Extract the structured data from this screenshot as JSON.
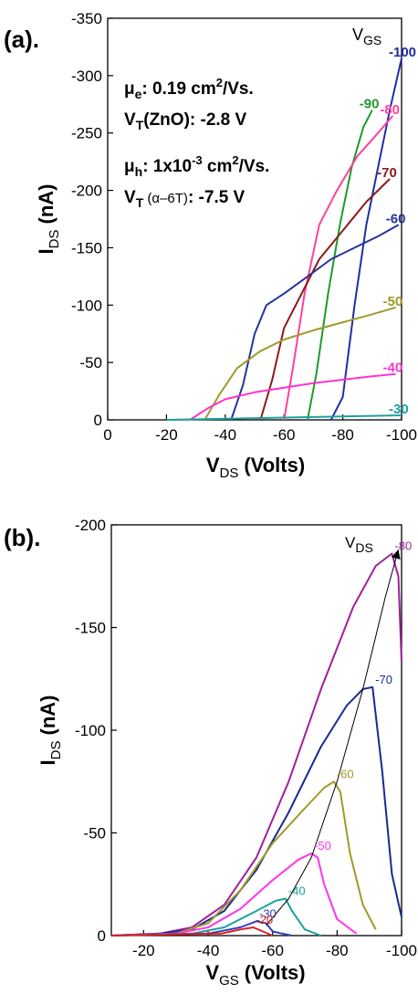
{
  "chart_data": [
    {
      "type": "line",
      "panel_label": "(a).",
      "xlabel_main": "V",
      "xlabel_sub": "DS",
      "xlabel_unit": "(Volts)",
      "ylabel_main": "I",
      "ylabel_sub": "DS",
      "ylabel_unit": "(nA)",
      "xlim": [
        0,
        -100
      ],
      "ylim": [
        0,
        -350
      ],
      "x_ticks": [
        "0",
        "-20",
        "-40",
        "-60",
        "-80",
        "-100"
      ],
      "y_ticks": [
        "0",
        "-50",
        "-100",
        "-150",
        "-200",
        "-250",
        "-300",
        "-350"
      ],
      "legend_title_main": "V",
      "legend_title_sub": "GS",
      "annotations": {
        "mu_e_main": "μ",
        "mu_e_sub": "e",
        "mu_e_val": ": 0.19 cm",
        "mu_e_sup": "2",
        "mu_e_unit": "/Vs.",
        "vt_zno_main": "V",
        "vt_zno_sub": "T",
        "vt_zno_val": "(ZnO): -2.8 V",
        "mu_h_main": "μ",
        "mu_h_sub": "h",
        "mu_h_val": ": 1x10",
        "mu_h_sup": "-3",
        "mu_h_mid": " cm",
        "mu_h_sup2": "2",
        "mu_h_unit": "/Vs.",
        "vt_6t_main": "V",
        "vt_6t_sub": "T",
        "vt_6t_paren": " (α–6T)",
        "vt_6t_val": ": -7.5 V"
      },
      "series": [
        {
          "name": "-100",
          "color": "#1f2fa6",
          "x": [
            -76,
            -80,
            -84,
            -88,
            -92,
            -96,
            -100
          ],
          "y": [
            0,
            -20,
            -100,
            -170,
            -220,
            -270,
            -315
          ]
        },
        {
          "name": "-90",
          "color": "#1e9a2c",
          "x": [
            -68,
            -71,
            -75,
            -79,
            -83,
            -87,
            -90
          ],
          "y": [
            0,
            -40,
            -110,
            -170,
            -220,
            -255,
            -270
          ]
        },
        {
          "name": "-80",
          "color": "#ff3fa0",
          "x": [
            -60,
            -63,
            -67,
            -72,
            -78,
            -85,
            -92,
            -97
          ],
          "y": [
            0,
            -45,
            -110,
            -170,
            -200,
            -230,
            -250,
            -265
          ]
        },
        {
          "name": "-70",
          "color": "#8b1a1a",
          "x": [
            -52,
            -56,
            -60,
            -66,
            -72,
            -80,
            -88,
            -96
          ],
          "y": [
            0,
            -35,
            -80,
            -110,
            -140,
            -165,
            -190,
            -210
          ]
        },
        {
          "name": "-60",
          "color": "#24339a",
          "x": [
            -42,
            -46,
            -50,
            -54,
            -60,
            -68,
            -76,
            -84,
            -92,
            -99
          ],
          "y": [
            0,
            -30,
            -75,
            -100,
            -110,
            -125,
            -140,
            -150,
            -160,
            -170
          ]
        },
        {
          "name": "-50",
          "color": "#a09a28",
          "x": [
            -33,
            -38,
            -44,
            -52,
            -60,
            -70,
            -80,
            -90,
            -98
          ],
          "y": [
            0,
            -22,
            -45,
            -60,
            -70,
            -78,
            -85,
            -92,
            -98
          ]
        },
        {
          "name": "-40",
          "color": "#ff33cc",
          "x": [
            -28,
            -34,
            -40,
            -50,
            -60,
            -70,
            -80,
            -90,
            -98
          ],
          "y": [
            0,
            -10,
            -18,
            -24,
            -28,
            -32,
            -35,
            -38,
            -40
          ]
        },
        {
          "name": "-30",
          "color": "#20a0a0",
          "x": [
            -20,
            -40,
            -60,
            -80,
            -100
          ],
          "y": [
            0,
            -1,
            -2,
            -3,
            -4
          ]
        }
      ]
    },
    {
      "type": "line",
      "panel_label": "(b).",
      "xlabel_main": "V",
      "xlabel_sub": "GS",
      "xlabel_unit": "(Volts)",
      "ylabel_main": "I",
      "ylabel_sub": "DS",
      "ylabel_unit": "(nA)",
      "xlim": [
        -10,
        -100
      ],
      "ylim": [
        0,
        -200
      ],
      "x_ticks": [
        "-20",
        "-40",
        "-60",
        "-80",
        "-100"
      ],
      "y_ticks": [
        "0",
        "-50",
        "-100",
        "-150",
        "-200"
      ],
      "legend_title_main": "V",
      "legend_title_sub": "DS",
      "series": [
        {
          "name": "-80",
          "color": "#a0209a",
          "x": [
            -10,
            -25,
            -35,
            -45,
            -55,
            -65,
            -75,
            -85,
            -92,
            -97,
            -99,
            -100
          ],
          "y": [
            0,
            -1,
            -4,
            -15,
            -38,
            -75,
            -120,
            -160,
            -180,
            -186,
            -175,
            -133
          ]
        },
        {
          "name": "-70",
          "color": "#1a2a90",
          "x": [
            -10,
            -25,
            -35,
            -45,
            -55,
            -65,
            -75,
            -83,
            -88,
            -91,
            -94,
            -97,
            -100
          ],
          "y": [
            0,
            -1,
            -3,
            -12,
            -32,
            -60,
            -92,
            -112,
            -120,
            -121,
            -80,
            -30,
            -9
          ]
        },
        {
          "name": "-60",
          "color": "#a09a28",
          "x": [
            -10,
            -30,
            -40,
            -50,
            -60,
            -70,
            -76,
            -79,
            -81,
            -84,
            -88,
            -92
          ],
          "y": [
            0,
            -1,
            -6,
            -22,
            -45,
            -62,
            -72,
            -75,
            -70,
            -40,
            -15,
            -3
          ]
        },
        {
          "name": "-50",
          "color": "#ff33ee",
          "x": [
            -10,
            -30,
            -40,
            -50,
            -60,
            -68,
            -72,
            -74,
            -76,
            -80,
            -86
          ],
          "y": [
            0,
            -1,
            -4,
            -13,
            -27,
            -37,
            -40,
            -38,
            -25,
            -8,
            -1
          ]
        },
        {
          "name": "-40",
          "color": "#1aa0a0",
          "x": [
            -10,
            -35,
            -45,
            -55,
            -61,
            -64,
            -66,
            -70,
            -75
          ],
          "y": [
            0,
            -1,
            -4,
            -12,
            -17,
            -18,
            -12,
            -3,
            0
          ]
        },
        {
          "name": "-30",
          "color": "#3040c0",
          "x": [
            -10,
            -40,
            -50,
            -55,
            -58,
            -60,
            -63,
            -66
          ],
          "y": [
            0,
            -1,
            -4,
            -7,
            -6,
            -2,
            -1,
            0
          ]
        },
        {
          "name": "-20",
          "color": "#e02020",
          "x": [
            -10,
            -44,
            -50,
            -54,
            -57,
            -60
          ],
          "y": [
            0,
            -1,
            -3,
            -4,
            -2,
            0
          ]
        },
        {
          "name": "envelope",
          "color": "#000000",
          "x": [
            -58,
            -65,
            -72,
            -80,
            -88,
            -95,
            -99
          ],
          "y": [
            -5,
            -18,
            -38,
            -75,
            -120,
            -165,
            -188
          ]
        }
      ]
    }
  ]
}
